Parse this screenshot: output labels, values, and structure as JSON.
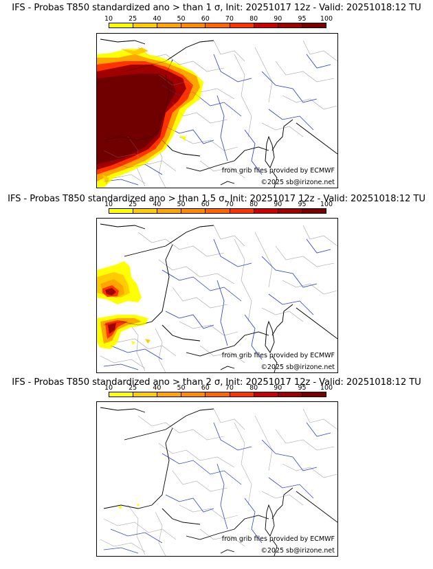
{
  "colorbar": {
    "ticks": [
      "10",
      "25",
      "40",
      "50",
      "60",
      "70",
      "80",
      "90",
      "95",
      "100"
    ],
    "colors": [
      "#ffff00",
      "#ffcc00",
      "#ffa500",
      "#ff8c00",
      "#ff6600",
      "#ff3300",
      "#cc0000",
      "#a00000",
      "#7a0000"
    ]
  },
  "panels": [
    {
      "title": "IFS - Probas T850  standardized ano > than 1 σ, Init: 20251017 12z - Valid: 20251018:12 TU",
      "source": "from grib files provided by ECMWF",
      "copyright": "©2025 sb@irizone.net"
    },
    {
      "title": "IFS - Probas T850  standardized ano > than 1.5 σ, Init: 20251017 12z - Valid: 20251018:12 TU",
      "source": "from grib files provided by ECMWF",
      "copyright": "©2025 sb@irizone.net"
    },
    {
      "title": "IFS - Probas T850  standardized ano > than 2 σ, Init: 20251017 12z - Valid: 20251018:12 TU",
      "source": "from grib files provided by ECMWF",
      "copyright": "©2025 sb@irizone.net"
    }
  ]
}
